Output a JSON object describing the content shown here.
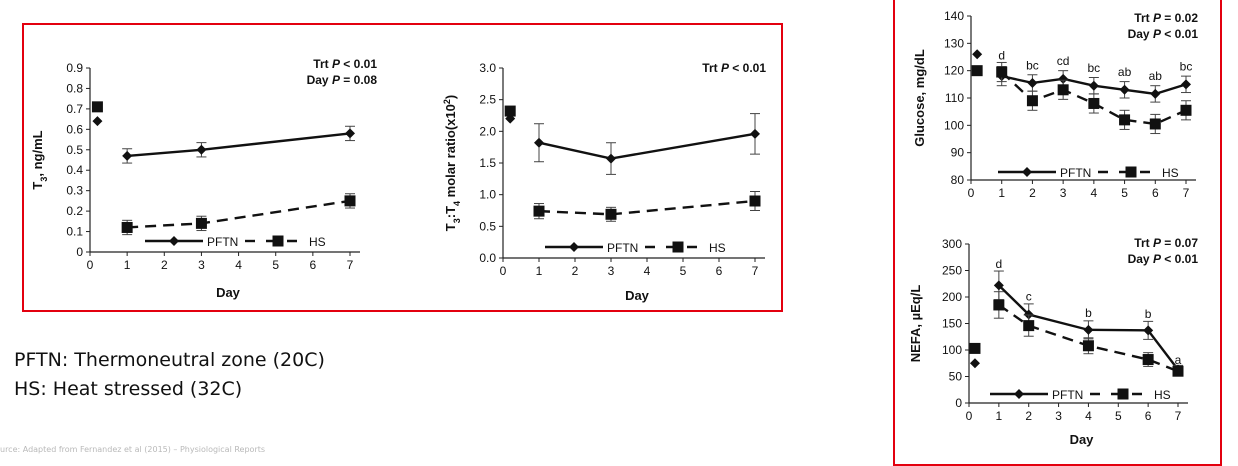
{
  "legend": {
    "series_a": "PFTN",
    "series_b": "HS"
  },
  "notes": {
    "line1": "PFTN: Thermoneutral zone (20C)",
    "line2": "HS: Heat stressed (32C)"
  },
  "source": "urce: Adapted from Fernandez et al (2015) – Physiological Reports",
  "colors": {
    "frame": "#e3000f",
    "series": "#111111"
  },
  "chart_data": [
    {
      "id": "t3",
      "type": "line",
      "title": "",
      "xlabel": "Day",
      "ylabel": "T3, ng/mL",
      "xlim": [
        0,
        7
      ],
      "ylim": [
        0,
        0.9
      ],
      "xticks": [
        0,
        1,
        2,
        3,
        4,
        5,
        6,
        7
      ],
      "yticks": [
        0,
        0.1,
        0.2,
        0.3,
        0.4,
        0.5,
        0.6,
        0.7,
        0.8,
        0.9
      ],
      "ytick_labels": [
        "0",
        "0.1",
        "0.2",
        "0.3",
        "0.4",
        "0.5",
        "0.6",
        "0.7",
        "0.8",
        "0.9"
      ],
      "annotation": [
        "Trt P < 0.01",
        "Day P = 0.08"
      ],
      "series": [
        {
          "name": "PFTN",
          "marker": "diamond",
          "line": "solid",
          "baseline": {
            "x": 0.2,
            "y": 0.64
          },
          "x": [
            1,
            3,
            7
          ],
          "values": [
            0.47,
            0.5,
            0.58
          ],
          "err": [
            0.035,
            0.035,
            0.035
          ]
        },
        {
          "name": "HS",
          "marker": "square",
          "line": "dashed",
          "baseline": {
            "x": 0.2,
            "y": 0.71
          },
          "x": [
            1,
            3,
            7
          ],
          "values": [
            0.12,
            0.14,
            0.25
          ],
          "err": [
            0.035,
            0.035,
            0.035
          ]
        }
      ],
      "letters": [],
      "legend_position": "bottom-inside"
    },
    {
      "id": "ratio",
      "type": "line",
      "title": "",
      "xlabel": "Day",
      "ylabel": "T3:T4 molar ratio(x10^2)",
      "xlim": [
        0,
        7
      ],
      "ylim": [
        0,
        3.0
      ],
      "xticks": [
        0,
        1,
        2,
        3,
        4,
        5,
        6,
        7
      ],
      "yticks": [
        0,
        0.5,
        1.0,
        1.5,
        2.0,
        2.5,
        3.0
      ],
      "ytick_labels": [
        "0.0",
        "0.5",
        "1.0",
        "1.5",
        "2.0",
        "2.5",
        "3.0"
      ],
      "annotation": [
        "Trt P < 0.01"
      ],
      "series": [
        {
          "name": "PFTN",
          "marker": "diamond",
          "line": "solid",
          "baseline": {
            "x": 0.2,
            "y": 2.2
          },
          "x": [
            1,
            3,
            7
          ],
          "values": [
            1.82,
            1.57,
            1.96
          ],
          "err": [
            0.3,
            0.25,
            0.32
          ]
        },
        {
          "name": "HS",
          "marker": "square",
          "line": "dashed",
          "baseline": {
            "x": 0.2,
            "y": 2.32
          },
          "x": [
            1,
            3,
            7
          ],
          "values": [
            0.74,
            0.69,
            0.9
          ],
          "err": [
            0.12,
            0.11,
            0.15
          ]
        }
      ],
      "letters": [],
      "legend_position": "bottom-inside"
    },
    {
      "id": "glucose",
      "type": "line",
      "title": "",
      "xlabel": "",
      "ylabel": "Glucose, mg/dL",
      "xlim": [
        0,
        7
      ],
      "ylim": [
        80,
        140
      ],
      "xticks": [
        0,
        1,
        2,
        3,
        4,
        5,
        6,
        7
      ],
      "yticks": [
        80,
        90,
        100,
        110,
        120,
        130,
        140
      ],
      "ytick_labels": [
        "80",
        "90",
        "100",
        "110",
        "120",
        "130",
        "140"
      ],
      "annotation": [
        "Trt P = 0.02",
        "Day P < 0.01"
      ],
      "series": [
        {
          "name": "PFTN",
          "marker": "diamond",
          "line": "solid",
          "baseline": {
            "x": 0.2,
            "y": 126
          },
          "x": [
            1,
            2,
            3,
            4,
            5,
            6,
            7
          ],
          "values": [
            118,
            115.5,
            117,
            114.5,
            113,
            111.5,
            115
          ],
          "err": [
            3.5,
            3,
            3,
            3,
            3,
            3,
            3
          ]
        },
        {
          "name": "HS",
          "marker": "square",
          "line": "dashed",
          "baseline": {
            "x": 0.2,
            "y": 120
          },
          "x": [
            1,
            2,
            3,
            4,
            5,
            6,
            7
          ],
          "values": [
            119.5,
            109,
            113,
            108,
            102,
            100.5,
            105.5
          ],
          "err": [
            3.5,
            3.5,
            3.5,
            3.5,
            3.5,
            3.5,
            3.5
          ]
        }
      ],
      "letters": [
        {
          "x": 1,
          "text": "d",
          "y": 124
        },
        {
          "x": 2,
          "text": "bc",
          "y": 120.5
        },
        {
          "x": 3,
          "text": "cd",
          "y": 122
        },
        {
          "x": 4,
          "text": "bc",
          "y": 119.5
        },
        {
          "x": 5,
          "text": "ab",
          "y": 118
        },
        {
          "x": 6,
          "text": "ab",
          "y": 116.5
        },
        {
          "x": 7,
          "text": "bc",
          "y": 120
        }
      ],
      "legend_position": "bottom-inside"
    },
    {
      "id": "nefa",
      "type": "line",
      "title": "",
      "xlabel": "Day",
      "ylabel": "NEFA, µEq/L",
      "xlim": [
        0,
        7
      ],
      "ylim": [
        0,
        300
      ],
      "xticks": [
        0,
        1,
        2,
        3,
        4,
        5,
        6,
        7
      ],
      "yticks": [
        0,
        50,
        100,
        150,
        200,
        250,
        300
      ],
      "ytick_labels": [
        "0",
        "50",
        "100",
        "150",
        "200",
        "250",
        "300"
      ],
      "annotation": [
        "Trt P = 0.07",
        "Day P < 0.01"
      ],
      "series": [
        {
          "name": "PFTN",
          "marker": "diamond",
          "line": "solid",
          "baseline": {
            "x": 0.2,
            "y": 75
          },
          "x": [
            1,
            2,
            4,
            6,
            7
          ],
          "values": [
            222,
            167,
            138,
            137,
            63
          ],
          "err": [
            27,
            20,
            17,
            17,
            8
          ]
        },
        {
          "name": "HS",
          "marker": "square",
          "line": "dashed",
          "baseline": {
            "x": 0.2,
            "y": 103
          },
          "x": [
            1,
            2,
            4,
            6,
            7
          ],
          "values": [
            185,
            146,
            108,
            82,
            60
          ],
          "err": [
            25,
            20,
            15,
            13,
            8
          ]
        }
      ],
      "letters": [
        {
          "x": 1,
          "text": "d",
          "y": 255
        },
        {
          "x": 2,
          "text": "c",
          "y": 193
        },
        {
          "x": 4,
          "text": "b",
          "y": 162
        },
        {
          "x": 6,
          "text": "b",
          "y": 160
        },
        {
          "x": 7,
          "text": "a",
          "y": 74
        }
      ],
      "legend_position": "bottom-inside"
    }
  ]
}
